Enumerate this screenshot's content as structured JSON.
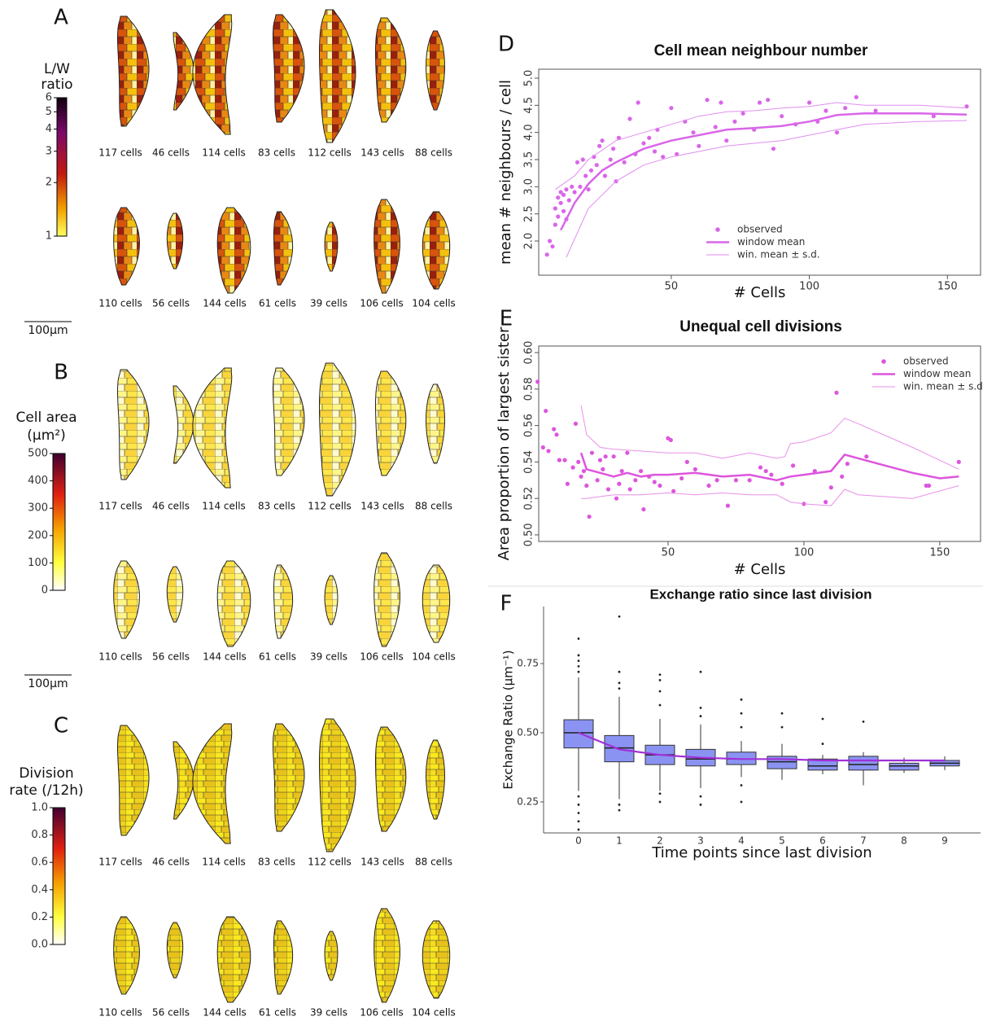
{
  "panels": [
    {
      "label": "A",
      "colorbar": {
        "title": [
          "L/W",
          "ratio"
        ],
        "scale": "log",
        "lim": [
          1,
          6
        ],
        "ticks": [
          1,
          2,
          3,
          4,
          5,
          6
        ]
      },
      "rows": [
        [
          "117 cells",
          "46 cells",
          "114 cells",
          "83 cells",
          "112 cells",
          "143 cells",
          "88 cells"
        ],
        [
          "110 cells",
          "56 cells",
          "144 cells",
          "61 cells",
          "39 cells",
          "106 cells",
          "104 cells"
        ]
      ],
      "scale_bar": "100µm"
    },
    {
      "label": "B",
      "colorbar": {
        "title": [
          "Cell area",
          "(µm²)"
        ],
        "scale": "linear",
        "lim": [
          0,
          500
        ],
        "ticks": [
          0,
          100,
          200,
          300,
          400,
          500
        ]
      },
      "rows": [
        [
          "117 cells",
          "46 cells",
          "114 cells",
          "83 cells",
          "112 cells",
          "143 cells",
          "88 cells"
        ],
        [
          "110 cells",
          "56 cells",
          "144 cells",
          "61 cells",
          "39 cells",
          "106 cells",
          "104 cells"
        ]
      ],
      "scale_bar": "100µm"
    },
    {
      "label": "C",
      "colorbar": {
        "title": [
          "Division",
          "rate (/12h)"
        ],
        "scale": "linear",
        "lim": [
          0,
          1
        ],
        "ticks": [
          {
            "value": 0,
            "label": "0.0"
          },
          0.2,
          0.4,
          0.6,
          0.8,
          {
            "value": 1,
            "label": "1.0"
          }
        ]
      },
      "rows": [
        [
          "117 cells",
          "46 cells",
          "114 cells",
          "83 cells",
          "112 cells",
          "143 cells",
          "88 cells"
        ],
        [
          "110 cells",
          "56 cells",
          "144 cells",
          "61 cells",
          "39 cells",
          "106 cells",
          "104 cells"
        ]
      ]
    }
  ],
  "chart_data": [
    {
      "type": "scatter",
      "panel_label": "D",
      "title": "Cell mean neighbour number",
      "xlabel": "# Cells",
      "ylabel": "mean # neighbours / cell",
      "xlim": [
        2,
        162
      ],
      "xticks": [
        50,
        100,
        150
      ],
      "ylim": [
        1.37,
        5.165
      ],
      "yticks": [
        {
          "value": 2,
          "label": "2.0"
        },
        2.5,
        {
          "value": 3,
          "label": "3.0"
        },
        3.5,
        {
          "value": 4,
          "label": "4.0"
        },
        4.5,
        {
          "value": 5,
          "label": "5.0"
        }
      ],
      "legend": "lower center",
      "series": [
        {
          "name": "observed",
          "type": "scatter",
          "color": "#d966e8",
          "x": [
            5,
            6,
            7,
            8,
            8,
            9,
            9,
            10,
            10,
            11,
            11,
            12,
            12,
            13,
            14,
            15,
            16,
            17,
            18,
            19,
            20,
            21,
            22,
            23,
            24,
            25,
            26,
            28,
            29,
            30,
            31,
            33,
            35,
            37,
            38,
            40,
            42,
            44,
            45,
            47,
            50,
            52,
            55,
            58,
            60,
            63,
            66,
            68,
            70,
            73,
            76,
            80,
            82,
            85,
            87,
            90,
            95,
            100,
            103,
            106,
            110,
            113,
            117,
            124,
            145,
            157
          ],
          "values": [
            1.75,
            2.0,
            1.9,
            2.3,
            2.6,
            2.8,
            2.45,
            2.7,
            2.9,
            2.55,
            2.85,
            2.95,
            2.4,
            2.75,
            3.0,
            2.9,
            3.45,
            3.0,
            3.5,
            3.2,
            2.95,
            3.3,
            3.55,
            3.4,
            3.75,
            3.85,
            3.2,
            3.5,
            3.7,
            3.1,
            3.9,
            3.45,
            4.25,
            3.6,
            4.55,
            3.8,
            3.9,
            3.65,
            4.05,
            3.55,
            4.45,
            3.6,
            4.2,
            4.0,
            3.75,
            4.6,
            4.1,
            4.55,
            3.85,
            4.2,
            4.35,
            4.05,
            4.55,
            4.6,
            3.7,
            4.3,
            4.15,
            4.55,
            4.2,
            4.4,
            4.0,
            4.45,
            4.65,
            4.4,
            4.3,
            4.48
          ]
        },
        {
          "name": "window mean",
          "type": "line",
          "color": "#d966e8",
          "x": [
            10,
            15,
            20,
            25,
            30,
            40,
            50,
            60,
            70,
            80,
            90,
            100,
            110,
            120,
            140,
            157
          ],
          "values": [
            2.2,
            2.7,
            3.05,
            3.3,
            3.45,
            3.7,
            3.85,
            3.95,
            4.05,
            4.08,
            4.12,
            4.2,
            4.32,
            4.35,
            4.35,
            4.33
          ]
        },
        {
          "name": "win. mean ± s.d.",
          "type": "line",
          "color": "#e08ef0",
          "x": [
            8,
            15,
            20,
            30,
            40,
            50,
            60,
            70,
            80,
            90,
            100,
            110,
            120,
            140,
            157
          ],
          "values": [
            2.95,
            3.2,
            3.5,
            3.85,
            4.0,
            4.15,
            4.3,
            4.38,
            4.4,
            4.45,
            4.48,
            4.55,
            4.5,
            4.5,
            4.45
          ]
        },
        {
          "type": "line",
          "color": "#e08ef0",
          "x": [
            12,
            20,
            30,
            40,
            50,
            60,
            70,
            80,
            90,
            100,
            110,
            120,
            140,
            157
          ],
          "values": [
            1.7,
            2.6,
            3.1,
            3.4,
            3.55,
            3.65,
            3.75,
            3.8,
            3.85,
            3.95,
            4.05,
            4.15,
            4.2,
            4.22
          ]
        }
      ]
    },
    {
      "type": "scatter",
      "panel_label": "E",
      "title": "Unequal cell divisions",
      "xlabel": "# Cells",
      "ylabel": "Area proportion of largest sister",
      "xlim": [
        2.4,
        165
      ],
      "xticks": [
        50,
        100,
        150
      ],
      "ylim": [
        0.4964,
        0.6036
      ],
      "yticks": [
        {
          "value": 0.5,
          "label": "0.50"
        },
        0.52,
        0.54,
        0.56,
        0.58,
        {
          "value": 0.6,
          "label": "0.60"
        }
      ],
      "legend": "upper right",
      "series": [
        {
          "name": "observed",
          "type": "scatter",
          "color": "#dd55dd",
          "x": [
            2,
            4,
            5,
            6,
            8,
            9,
            10,
            12,
            13,
            15,
            16,
            17,
            18,
            19,
            20,
            21,
            22,
            24,
            25,
            26,
            27,
            28,
            30,
            31,
            32,
            33,
            35,
            36,
            38,
            40,
            41,
            43,
            45,
            47,
            50,
            51,
            52,
            55,
            57,
            60,
            65,
            68,
            72,
            75,
            80,
            84,
            86,
            88,
            92,
            96,
            100,
            104,
            108,
            110,
            112,
            114,
            116,
            123,
            145,
            146,
            157
          ],
          "values": [
            0.584,
            0.548,
            0.568,
            0.546,
            0.558,
            0.555,
            0.541,
            0.541,
            0.528,
            0.537,
            0.561,
            0.54,
            0.532,
            0.535,
            0.527,
            0.51,
            0.545,
            0.53,
            0.541,
            0.536,
            0.543,
            0.525,
            0.543,
            0.52,
            0.528,
            0.535,
            0.545,
            0.525,
            0.53,
            0.535,
            0.514,
            0.532,
            0.529,
            0.527,
            0.553,
            0.552,
            0.524,
            0.531,
            0.54,
            0.536,
            0.527,
            0.53,
            0.516,
            0.53,
            0.53,
            0.537,
            0.535,
            0.533,
            0.528,
            0.538,
            0.517,
            0.535,
            0.518,
            0.526,
            0.578,
            0.532,
            0.539,
            0.543,
            0.527,
            0.527,
            0.54
          ]
        },
        {
          "name": "window mean",
          "type": "line",
          "color": "#dd55dd",
          "x": [
            18,
            20,
            25,
            30,
            35,
            40,
            45,
            50,
            60,
            70,
            80,
            90,
            95,
            100,
            110,
            115,
            120,
            130,
            140,
            150,
            157
          ],
          "values": [
            0.545,
            0.536,
            0.534,
            0.532,
            0.534,
            0.532,
            0.533,
            0.533,
            0.534,
            0.532,
            0.533,
            0.53,
            0.532,
            0.533,
            0.535,
            0.544,
            0.542,
            0.538,
            0.534,
            0.531,
            0.532
          ]
        },
        {
          "name": "win. mean ± s.d.",
          "type": "line",
          "color": "#e890e8",
          "x": [
            18,
            20,
            25,
            30,
            40,
            50,
            60,
            70,
            80,
            90,
            93,
            95,
            100,
            110,
            115,
            120,
            140,
            157
          ],
          "values": [
            0.571,
            0.555,
            0.548,
            0.547,
            0.546,
            0.545,
            0.545,
            0.542,
            0.545,
            0.542,
            0.543,
            0.55,
            0.551,
            0.556,
            0.564,
            0.561,
            0.548,
            0.536
          ]
        },
        {
          "type": "line",
          "color": "#e890e8",
          "x": [
            18,
            20,
            25,
            30,
            40,
            50,
            60,
            70,
            80,
            90,
            95,
            100,
            110,
            115,
            120,
            140,
            157
          ],
          "values": [
            0.52,
            0.52,
            0.521,
            0.522,
            0.522,
            0.523,
            0.522,
            0.523,
            0.522,
            0.522,
            0.518,
            0.517,
            0.516,
            0.525,
            0.522,
            0.52,
            0.527
          ]
        }
      ]
    },
    {
      "type": "box",
      "panel_label": "F",
      "title": "Exchange ratio since last division",
      "xlabel": "Time points since last division",
      "ylabel": "Exchange Ratio (µm⁻¹)",
      "categories": [
        "0",
        "1",
        "2",
        "3",
        "4",
        "5",
        "6",
        "7",
        "8",
        "9"
      ],
      "ylim": [
        0.138,
        0.956
      ],
      "yticks": [
        0.25,
        {
          "value": 0.5,
          "label": "0.50"
        },
        0.75
      ],
      "color": "#8b93f2",
      "trend_color": "#a030d8",
      "boxes": [
        {
          "q1": 0.445,
          "median": 0.5,
          "q3": 0.547,
          "whisker_low": 0.29,
          "whisker_high": 0.7,
          "outliers": [
            0.84,
            0.78,
            0.76,
            0.74,
            0.72,
            0.27,
            0.24,
            0.21,
            0.18,
            0.15
          ]
        },
        {
          "q1": 0.395,
          "median": 0.445,
          "q3": 0.49,
          "whisker_low": 0.26,
          "whisker_high": 0.63,
          "outliers": [
            0.92,
            0.72,
            0.68,
            0.66,
            0.24,
            0.22
          ]
        },
        {
          "q1": 0.385,
          "median": 0.42,
          "q3": 0.455,
          "whisker_low": 0.29,
          "whisker_high": 0.55,
          "outliers": [
            0.71,
            0.69,
            0.65,
            0.6,
            0.28,
            0.25
          ]
        },
        {
          "q1": 0.38,
          "median": 0.405,
          "q3": 0.44,
          "whisker_low": 0.3,
          "whisker_high": 0.53,
          "outliers": [
            0.72,
            0.59,
            0.56,
            0.27,
            0.24
          ]
        },
        {
          "q1": 0.385,
          "median": 0.405,
          "q3": 0.43,
          "whisker_low": 0.34,
          "whisker_high": 0.47,
          "outliers": [
            0.62,
            0.57,
            0.52,
            0.31,
            0.25
          ]
        },
        {
          "q1": 0.37,
          "median": 0.395,
          "q3": 0.415,
          "whisker_low": 0.33,
          "whisker_high": 0.46,
          "outliers": [
            0.57,
            0.52
          ]
        },
        {
          "q1": 0.365,
          "median": 0.38,
          "q3": 0.405,
          "whisker_low": 0.35,
          "whisker_high": 0.42,
          "outliers": [
            0.55,
            0.46
          ]
        },
        {
          "q1": 0.365,
          "median": 0.385,
          "q3": 0.415,
          "whisker_low": 0.31,
          "whisker_high": 0.43,
          "outliers": [
            0.54
          ]
        },
        {
          "q1": 0.365,
          "median": 0.38,
          "q3": 0.39,
          "whisker_low": 0.355,
          "whisker_high": 0.41,
          "outliers": []
        },
        {
          "q1": 0.38,
          "median": 0.39,
          "q3": 0.4,
          "whisker_low": 0.365,
          "whisker_high": 0.415,
          "outliers": []
        }
      ],
      "trend": [
        0.5,
        0.44,
        0.42,
        0.41,
        0.405,
        0.405,
        0.4,
        0.4,
        0.4,
        0.4
      ]
    }
  ]
}
